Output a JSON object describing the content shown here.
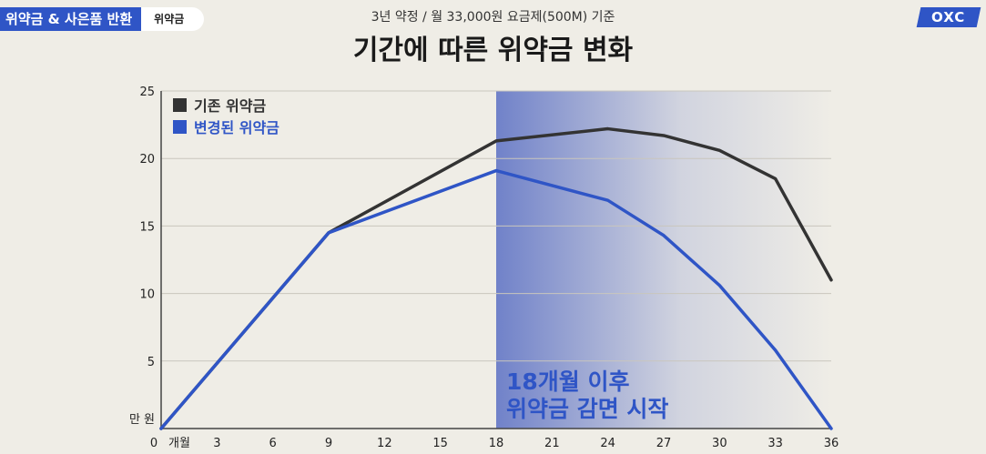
{
  "header": {
    "section_title": "위약금 & 사은품 반환",
    "section_tag": "위약금",
    "logo": "OXC"
  },
  "chart_data": {
    "type": "line",
    "title": "기간에 따른 위약금 변화",
    "subtitle": "3년 약정 / 월 33,000원 요금제(500M) 기준",
    "xlabel": "개월",
    "ylabel": "만 원",
    "x": [
      0,
      9,
      18,
      24,
      27,
      30,
      33,
      36
    ],
    "xticks": [
      0,
      3,
      6,
      9,
      12,
      15,
      18,
      21,
      24,
      27,
      30,
      33,
      36
    ],
    "yticks": [
      5,
      10,
      15,
      20,
      25
    ],
    "xlim": [
      0,
      36
    ],
    "ylim": [
      0,
      25
    ],
    "grid": true,
    "legend_position": "top-left",
    "series": [
      {
        "name": "기존 위약금",
        "color": "#333333",
        "values": [
          0,
          14.5,
          21.3,
          22.2,
          21.7,
          20.6,
          18.5,
          11.0
        ]
      },
      {
        "name": "변경된 위약금",
        "color": "#2f55c6",
        "values": [
          0,
          14.5,
          19.1,
          16.9,
          14.3,
          10.6,
          5.8,
          0
        ]
      }
    ],
    "highlight": {
      "x_start": 18,
      "x_end": 36,
      "color": "#5a6fc4",
      "annotation": [
        "18개월 이후",
        "위약금 감면 시작"
      ]
    }
  }
}
